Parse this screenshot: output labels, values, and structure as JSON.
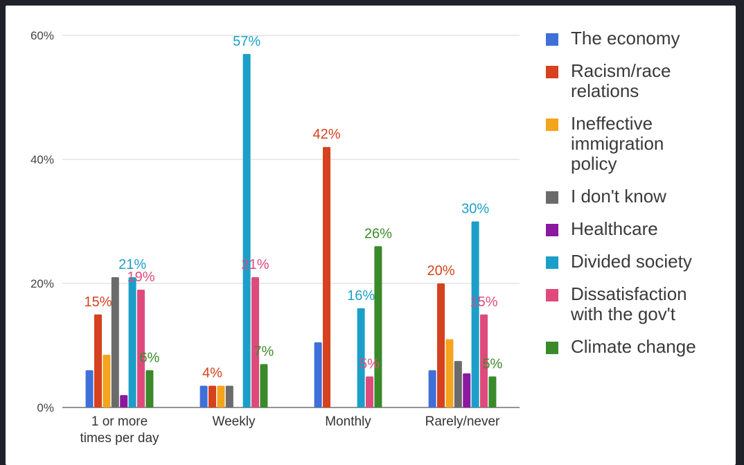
{
  "chart_data": {
    "type": "bar",
    "title": "",
    "xlabel": "",
    "ylabel": "",
    "ylim": [
      0,
      60
    ],
    "yticks": [
      {
        "value": 0,
        "label": "0%"
      },
      {
        "value": 20,
        "label": "20%"
      },
      {
        "value": 40,
        "label": "40%"
      },
      {
        "value": 60,
        "label": "60%"
      }
    ],
    "grid": true,
    "legend_position": "right",
    "categories": [
      [
        "1 or more",
        "times per day"
      ],
      [
        "Weekly"
      ],
      [
        "Monthly"
      ],
      [
        "Rarely/never"
      ]
    ],
    "series": [
      {
        "name": [
          "The economy"
        ],
        "color": "#3f6fd8",
        "values": [
          6,
          3.5,
          10.5,
          6
        ]
      },
      {
        "name": [
          "Racism/race",
          "relations"
        ],
        "color": "#d6411e",
        "values": [
          15,
          3.5,
          42,
          20
        ]
      },
      {
        "name": [
          "Ineffective",
          "immigration",
          "policy"
        ],
        "color": "#f4a41d",
        "values": [
          8.5,
          3.5,
          0,
          11
        ]
      },
      {
        "name": [
          "I don't know"
        ],
        "color": "#6b6b6b",
        "values": [
          21,
          3.5,
          0,
          7.5
        ]
      },
      {
        "name": [
          "Healthcare"
        ],
        "color": "#8a19a0",
        "values": [
          2,
          0,
          0,
          5.5
        ]
      },
      {
        "name": [
          "Divided society"
        ],
        "color": "#1b9fc8",
        "values": [
          21,
          57,
          16,
          30
        ]
      },
      {
        "name": [
          "Dissatisfaction",
          "with the gov't"
        ],
        "color": "#df4a7d",
        "values": [
          19,
          21,
          5,
          15
        ]
      },
      {
        "name": [
          "Climate change"
        ],
        "color": "#3a8a2a",
        "values": [
          6,
          7,
          26,
          5
        ]
      }
    ],
    "data_labels": [
      {
        "category": 0,
        "series": 1,
        "text": "15%"
      },
      {
        "category": 0,
        "series": 5,
        "text": "21%"
      },
      {
        "category": 0,
        "series": 6,
        "text": "19%"
      },
      {
        "category": 0,
        "series": 7,
        "text": "6%"
      },
      {
        "category": 1,
        "series": 1,
        "text": "4%"
      },
      {
        "category": 1,
        "series": 5,
        "text": "57%"
      },
      {
        "category": 1,
        "series": 6,
        "text": "21%"
      },
      {
        "category": 1,
        "series": 7,
        "text": "7%"
      },
      {
        "category": 2,
        "series": 1,
        "text": "42%"
      },
      {
        "category": 2,
        "series": 5,
        "text": "16%"
      },
      {
        "category": 2,
        "series": 6,
        "text": "5%"
      },
      {
        "category": 2,
        "series": 7,
        "text": "26%"
      },
      {
        "category": 3,
        "series": 1,
        "text": "20%"
      },
      {
        "category": 3,
        "series": 5,
        "text": "30%"
      },
      {
        "category": 3,
        "series": 6,
        "text": "15%"
      },
      {
        "category": 3,
        "series": 7,
        "text": "5%"
      }
    ]
  }
}
